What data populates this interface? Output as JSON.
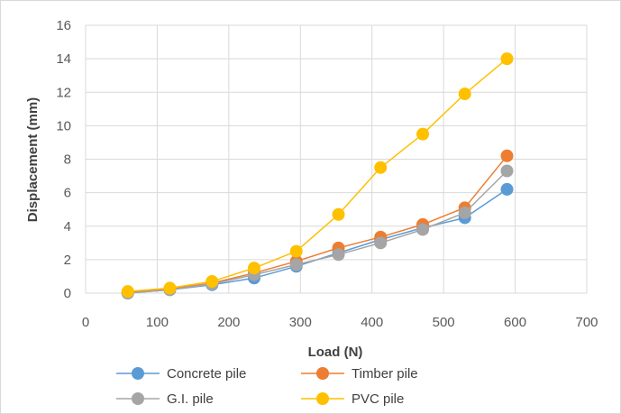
{
  "chart_data": {
    "type": "line",
    "xlabel": "Load (N)",
    "ylabel": "Displacement (mm)",
    "xlim": [
      0,
      700
    ],
    "ylim": [
      0,
      16
    ],
    "x_ticks": [
      "0",
      "100",
      "200",
      "300",
      "400",
      "500",
      "600",
      "700"
    ],
    "y_ticks": [
      "0",
      "2",
      "4",
      "6",
      "8",
      "10",
      "12",
      "14",
      "16"
    ],
    "grid": true,
    "legend_position": "bottom",
    "x": [
      58.9,
      117.7,
      176.6,
      235.4,
      294.3,
      353.2,
      412,
      470.9,
      529.7,
      588.6
    ],
    "series": [
      {
        "name": "Concrete pile",
        "color": "#5b9bd5",
        "values": [
          0.0,
          0.2,
          0.5,
          0.9,
          1.6,
          2.4,
          3.2,
          3.9,
          4.5,
          6.2
        ]
      },
      {
        "name": "Timber pile",
        "color": "#ed7d31",
        "values": [
          0.05,
          0.25,
          0.6,
          1.2,
          1.9,
          2.7,
          3.35,
          4.1,
          5.1,
          8.2
        ]
      },
      {
        "name": "G.I. pile",
        "color": "#a5a5a5",
        "values": [
          0.0,
          0.2,
          0.55,
          1.1,
          1.7,
          2.3,
          3.0,
          3.8,
          4.8,
          7.3
        ]
      },
      {
        "name": "PVC pile",
        "color": "#ffc000",
        "values": [
          0.1,
          0.3,
          0.7,
          1.5,
          2.5,
          4.7,
          7.5,
          9.5,
          11.9,
          14.0
        ]
      }
    ]
  }
}
